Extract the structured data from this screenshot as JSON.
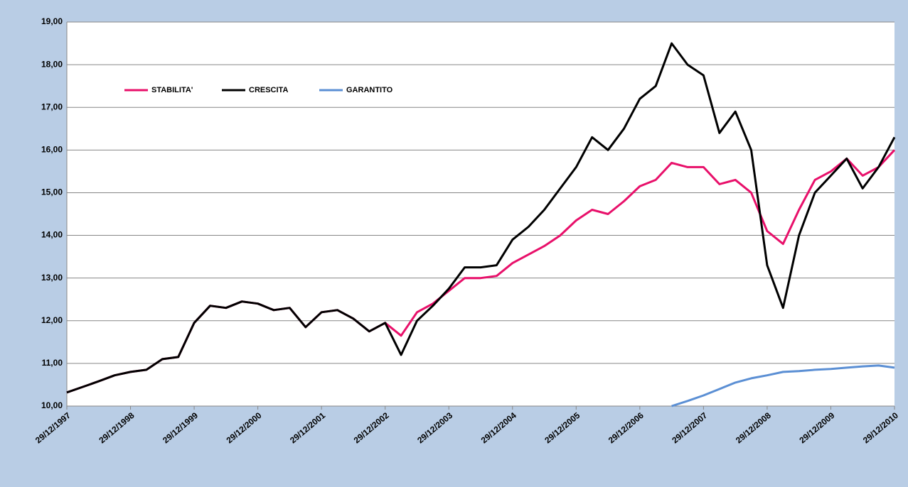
{
  "chart_data": {
    "type": "line",
    "categories": [
      "29/12/1997",
      null,
      null,
      null,
      "29/12/1998",
      null,
      null,
      null,
      "29/12/1999",
      null,
      null,
      null,
      "29/12/2000",
      null,
      null,
      null,
      "29/12/2001",
      null,
      null,
      null,
      "29/12/2002",
      null,
      null,
      null,
      "29/12/2003",
      null,
      null,
      null,
      "29/12/2004",
      null,
      null,
      null,
      "29/12/2005",
      null,
      null,
      null,
      "29/12/2006",
      null,
      null,
      null,
      "29/12/2007",
      null,
      null,
      null,
      "29/12/2008",
      null,
      null,
      null,
      "29/12/2009",
      null,
      null,
      null,
      "29/12/2010"
    ],
    "series": [
      {
        "name": "STABILITA'",
        "color": "#e8106a",
        "values": [
          10.32,
          10.45,
          10.58,
          10.72,
          10.8,
          10.85,
          11.1,
          11.15,
          11.95,
          12.35,
          12.3,
          12.45,
          12.4,
          12.25,
          12.3,
          11.85,
          12.2,
          12.25,
          12.05,
          11.75,
          11.95,
          11.65,
          12.2,
          12.4,
          12.7,
          13.0,
          13.0,
          13.05,
          13.35,
          13.55,
          13.75,
          14.0,
          14.35,
          14.6,
          14.5,
          14.8,
          15.15,
          15.3,
          15.7,
          15.6,
          15.6,
          15.2,
          15.3,
          15.0,
          14.1,
          13.8,
          14.6,
          15.3,
          15.5,
          15.8,
          15.4,
          15.6,
          16.0
        ]
      },
      {
        "name": "CRESCITA",
        "color": "#000000",
        "values": [
          10.32,
          10.45,
          10.58,
          10.72,
          10.8,
          10.85,
          11.1,
          11.15,
          11.95,
          12.35,
          12.3,
          12.45,
          12.4,
          12.25,
          12.3,
          11.85,
          12.2,
          12.25,
          12.05,
          11.75,
          11.95,
          11.2,
          12.0,
          12.35,
          12.75,
          13.25,
          13.25,
          13.3,
          13.9,
          14.2,
          14.6,
          15.1,
          15.6,
          16.3,
          16.0,
          16.5,
          17.2,
          17.5,
          18.5,
          18.0,
          17.75,
          16.4,
          16.9,
          16.0,
          13.3,
          12.3,
          14.0,
          15.0,
          15.4,
          15.8,
          15.1,
          15.6,
          16.3
        ]
      },
      {
        "name": "GARANTITO",
        "color": "#5b8fd4",
        "values": [
          null,
          null,
          null,
          null,
          null,
          null,
          null,
          null,
          null,
          null,
          null,
          null,
          null,
          null,
          null,
          null,
          null,
          null,
          null,
          null,
          null,
          null,
          null,
          null,
          null,
          null,
          null,
          null,
          null,
          null,
          null,
          null,
          null,
          null,
          null,
          null,
          null,
          null,
          10.0,
          10.12,
          10.25,
          10.4,
          10.55,
          10.65,
          10.72,
          10.8,
          10.82,
          10.85,
          10.87,
          10.9,
          10.93,
          10.95,
          10.9
        ]
      }
    ],
    "ylim": [
      10,
      19
    ],
    "yticks": [
      {
        "value": 10,
        "label": "10,00"
      },
      {
        "value": 11,
        "label": "11,00"
      },
      {
        "value": 12,
        "label": "12,00"
      },
      {
        "value": 13,
        "label": "13,00"
      },
      {
        "value": 14,
        "label": "14,00"
      },
      {
        "value": 15,
        "label": "15,00"
      },
      {
        "value": 16,
        "label": "16,00"
      },
      {
        "value": 17,
        "label": "17,00"
      },
      {
        "value": 18,
        "label": "18,00"
      },
      {
        "value": 19,
        "label": "19,00"
      }
    ],
    "grid": true,
    "legend": "top-left"
  }
}
